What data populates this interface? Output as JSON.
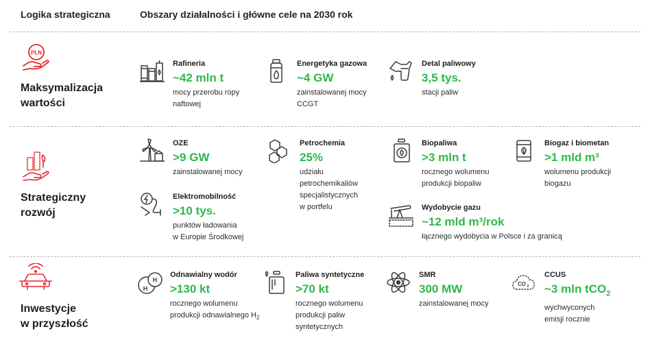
{
  "header": {
    "col1": "Logika strategiczna",
    "col2": "Obszary działalności i główne cele na 2030 rok"
  },
  "colors": {
    "accent_red": "#e3262f",
    "value_green": "#2db84b",
    "icon_gray": "#3a3a3a"
  },
  "sections": [
    {
      "label_line1": "Maksymalizacja",
      "label_line2": "wartości",
      "icon": "hand-pln-coin-icon",
      "icon_text": "PLN",
      "items": [
        {
          "name": "Rafineria",
          "value": "~42 mln t",
          "desc_line1": "mocy przerobu ropy",
          "desc_line2": "naftowej",
          "icon": "refinery-icon"
        },
        {
          "name": "Energetyka gazowa",
          "value": "~4 GW",
          "desc_line1": "zainstalowanej mocy",
          "desc_line2": "CCGT",
          "icon": "gas-cylinder-icon"
        },
        {
          "name": "Detal paliwowy",
          "value": "3,5 tys.",
          "desc_line1": "stacji paliw",
          "icon": "fuel-nozzle-icon"
        }
      ]
    },
    {
      "label_line1": "Strategiczny",
      "label_line2": "rozwój",
      "icon": "hand-growth-icon",
      "items": [
        {
          "name": "OZE",
          "value": ">9 GW",
          "desc_line1": "zainstalowanej mocy",
          "icon": "wind-turbine-icon"
        },
        {
          "name": "Petrochemia",
          "value": "25%",
          "desc_line1": "udziału",
          "desc_line2": "petrochemikaliów",
          "desc_line3": "specjalistycznych",
          "desc_line4": "w portfelu",
          "icon": "hexagon-molecule-icon"
        },
        {
          "name": "Biopaliwa",
          "value": ">3 mln t",
          "desc_line1": "rocznego wolumenu",
          "desc_line2": "produkcji biopaliw",
          "icon": "biofuel-canister-icon"
        },
        {
          "name": "Biogaz i biometan",
          "value": ">1 mld m³",
          "desc_line1": "wolumenu produkcji",
          "desc_line2": "biogazu",
          "icon": "biogas-barrel-icon"
        },
        {
          "name": "Elektromobilność",
          "value": ">10 tys.",
          "desc_line1": "punktów ładowania",
          "desc_line2": "w Europie Środkowej",
          "icon": "ev-charger-icon"
        },
        {
          "name": "Wydobycie gazu",
          "value": "~12 mld m³/rok",
          "desc_line1": "łącznego wydobycia w Polsce i za granicą",
          "icon": "pumpjack-icon"
        }
      ]
    },
    {
      "label_line1": "Inwestycje",
      "label_line2": "w przyszłość",
      "icon": "connected-car-icon",
      "items": [
        {
          "name": "Odnawialny wodór",
          "value": ">130 kt",
          "desc_line1": "rocznego wolumenu",
          "desc_line2": "produkcji odnawialnego H",
          "desc_sub": "2",
          "icon": "hydrogen-molecule-icon",
          "icon_text": "H"
        },
        {
          "name": "Paliwa syntetyczne",
          "value": ">70 kt",
          "desc_line1": "rocznego wolumenu",
          "desc_line2": "produkcji paliw",
          "desc_line3": "syntetycznych",
          "icon": "synthetic-fuel-icon"
        },
        {
          "name": "SMR",
          "value": "300 MW",
          "desc_line1": "zainstalowanej mocy",
          "icon": "atom-icon"
        },
        {
          "name": "CCUS",
          "value": "~3 mln tCO",
          "value_sub": "2",
          "desc_line1": "wychwyconych",
          "desc_line2": "emisji rocznie",
          "icon": "co2-cloud-icon",
          "icon_text": "CO",
          "icon_sub": "2"
        }
      ]
    }
  ]
}
